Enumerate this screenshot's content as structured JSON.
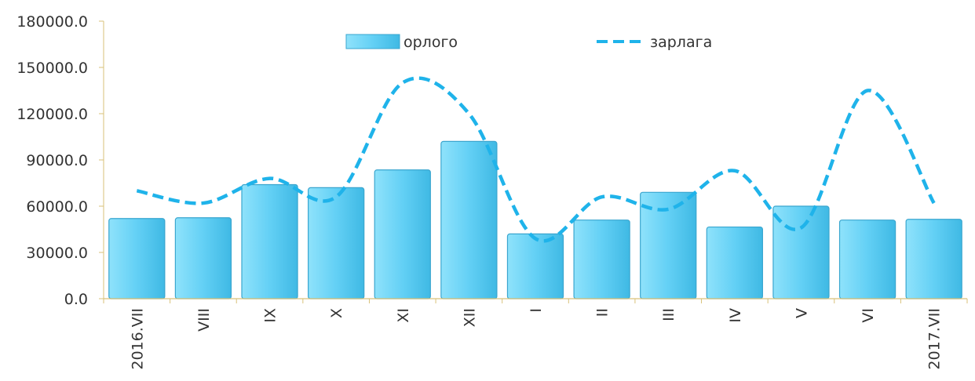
{
  "chart_data": {
    "type": "bar",
    "categories": [
      "2016.VII",
      "VIII",
      "IX",
      "X",
      "XI",
      "XII",
      "I",
      "II",
      "III",
      "IV",
      "V",
      "VI",
      "2017.VII"
    ],
    "series": [
      {
        "name": "орлого",
        "type": "bar",
        "color": "#5ccdf5",
        "values": [
          52000,
          52500,
          74000,
          72000,
          83500,
          102000,
          42000,
          51000,
          69000,
          46500,
          60000,
          51000,
          51500
        ]
      },
      {
        "name": "зарлага",
        "type": "line",
        "style": "dashed",
        "color": "#1fb3ea",
        "values": [
          70000,
          62000,
          78000,
          66000,
          140000,
          120000,
          39000,
          66000,
          58000,
          83000,
          46000,
          135000,
          62000
        ]
      }
    ],
    "ylim": [
      0,
      180000
    ],
    "yticks": [
      "0.0",
      "30000.0",
      "60000.0",
      "90000.0",
      "120000.0",
      "150000.0",
      "180000.0"
    ],
    "grid": false,
    "legend_position": "top-center"
  }
}
